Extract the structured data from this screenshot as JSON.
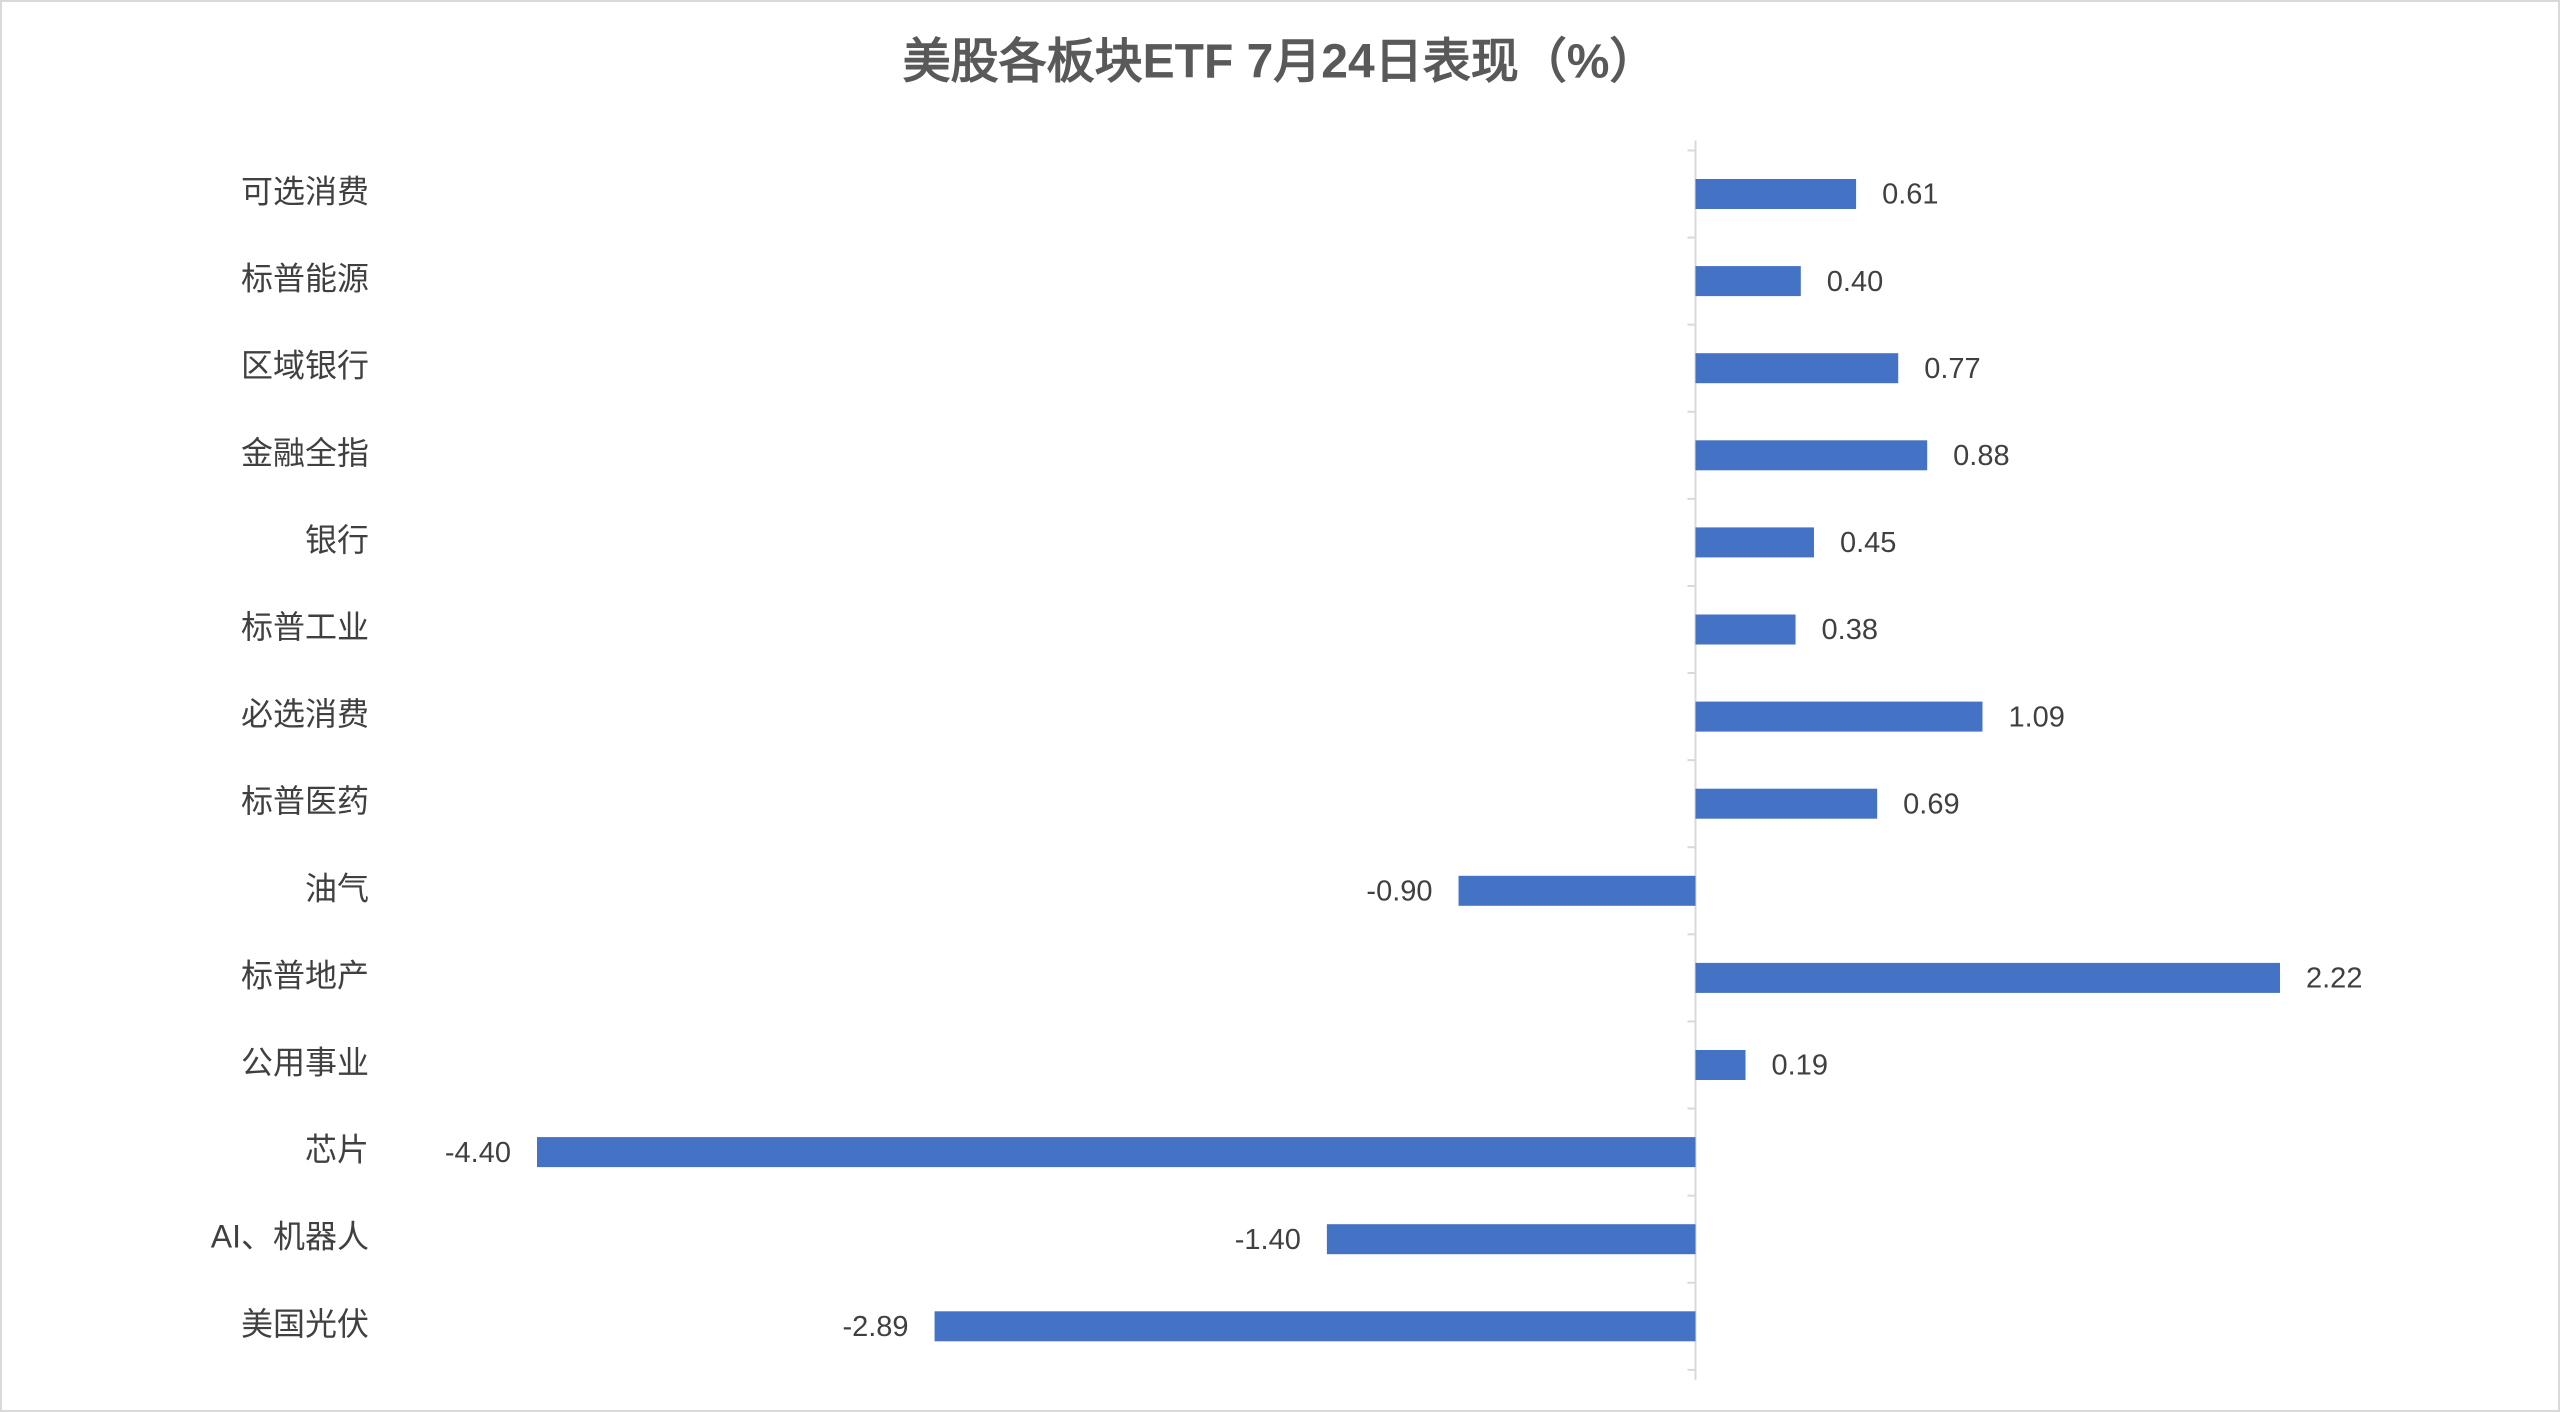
{
  "chart_data": {
    "type": "hbar",
    "title": "美股各板块ETF  7月24日表现（%）",
    "categories": [
      "可选消费",
      "标普能源",
      "区域银行",
      "金融全指",
      "银行",
      "标普工业",
      "必选消费",
      "标普医药",
      "油气",
      "标普地产",
      "公用事业",
      "芯片",
      "AI、机器人",
      "美国光伏"
    ],
    "values": [
      0.61,
      0.4,
      0.77,
      0.88,
      0.45,
      0.38,
      1.09,
      0.69,
      -0.9,
      2.22,
      0.19,
      -4.4,
      -1.4,
      -2.89
    ],
    "value_labels": [
      "0.61",
      "0.40",
      "0.77",
      "0.88",
      "0.45",
      "0.38",
      "1.09",
      "0.69",
      "-0.90",
      "2.22",
      "0.19",
      "-4.40",
      "-1.40",
      "-2.89"
    ],
    "color": "#4472c4"
  }
}
